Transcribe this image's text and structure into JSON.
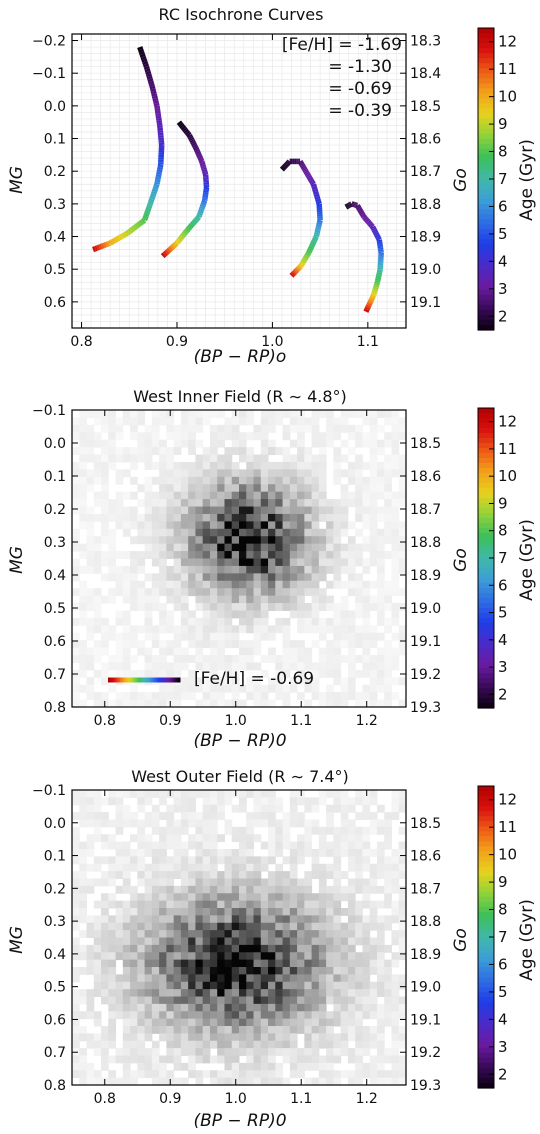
{
  "colormap": [
    "#0a0010",
    "#3a0a5a",
    "#6a1ba0",
    "#4a2ac8",
    "#1f3ee6",
    "#2f6ee4",
    "#3c9ed6",
    "#40b8a8",
    "#3cbf5a",
    "#8fd23a",
    "#e6d21e",
    "#f2a21a",
    "#ee5a16",
    "#d8100e",
    "#b00000"
  ],
  "panels": [
    {
      "title": "RC Isochrone Curves",
      "xlabel": "(BP − RP)o",
      "ylabel": "MG",
      "right_ylabel": "Go",
      "colorbar_label": "Age (Gyr)",
      "xlim": [
        0.79,
        1.14
      ],
      "ylim": [
        -0.22,
        0.68
      ],
      "xticks": [
        "0.8",
        "0.9",
        "1.0",
        "1.1"
      ],
      "yticks": [
        "−0.2",
        "−0.1",
        "0.0",
        "0.1",
        "0.2",
        "0.3",
        "0.4",
        "0.5",
        "0.6"
      ],
      "right_ticks": [
        "18.3",
        "18.4",
        "18.5",
        "18.6",
        "18.7",
        "18.8",
        "18.9",
        "19.0",
        "19.1"
      ],
      "cb_ticks": [
        "2",
        "3",
        "4",
        "5",
        "6",
        "7",
        "8",
        "9",
        "10",
        "11",
        "12"
      ],
      "annotations": [
        "[Fe/H] = -1.69",
        "= -1.30",
        "= -0.69",
        "= -0.39"
      ]
    },
    {
      "title": "West Inner Field (R ∼ 4.8°)",
      "xlabel": "(BP − RP)0",
      "ylabel": "MG",
      "right_ylabel": "Go",
      "colorbar_label": "Age (Gyr)",
      "xlim": [
        0.75,
        1.26
      ],
      "ylim": [
        -0.1,
        0.8
      ],
      "xticks": [
        "0.8",
        "0.9",
        "1.0",
        "1.1",
        "1.2"
      ],
      "yticks": [
        "−0.1",
        "0.0",
        "0.1",
        "0.2",
        "0.3",
        "0.4",
        "0.5",
        "0.6",
        "0.7",
        "0.8"
      ],
      "right_ticks": [
        "18.5",
        "18.6",
        "18.7",
        "18.8",
        "18.9",
        "19.0",
        "19.1",
        "19.2",
        "19.3"
      ],
      "cb_ticks": [
        "2",
        "3",
        "4",
        "5",
        "6",
        "7",
        "8",
        "9",
        "10",
        "11",
        "12"
      ],
      "annotation": "[Fe/H] = -0.69"
    },
    {
      "title": "West Outer Field (R ∼ 7.4°)",
      "xlabel": "(BP − RP)0",
      "ylabel": "MG",
      "right_ylabel": "Go",
      "colorbar_label": "Age (Gyr)",
      "xlim": [
        0.75,
        1.26
      ],
      "ylim": [
        -0.1,
        0.8
      ],
      "xticks": [
        "0.8",
        "0.9",
        "1.0",
        "1.1",
        "1.2"
      ],
      "yticks": [
        "−0.1",
        "0.0",
        "0.1",
        "0.2",
        "0.3",
        "0.4",
        "0.5",
        "0.6",
        "0.7",
        "0.8"
      ],
      "right_ticks": [
        "18.5",
        "18.6",
        "18.7",
        "18.8",
        "18.9",
        "19.0",
        "19.1",
        "19.2",
        "19.3"
      ],
      "cb_ticks": [
        "2",
        "3",
        "4",
        "5",
        "6",
        "7",
        "8",
        "9",
        "10",
        "11",
        "12"
      ]
    }
  ],
  "chart_data": [
    {
      "type": "line",
      "title": "RC Isochrone Curves",
      "xlabel": "(BP − RP)o",
      "ylabel": "MG",
      "xlim": [
        0.79,
        1.14
      ],
      "ylim": [
        0.68,
        -0.22
      ],
      "color_scale": {
        "label": "Age (Gyr)",
        "range": [
          1.5,
          12.5
        ]
      },
      "series": [
        {
          "name": "[Fe/H] = -1.69",
          "points": [
            [
              0.861,
              -0.18,
              1.5
            ],
            [
              0.868,
              -0.12,
              2
            ],
            [
              0.874,
              -0.06,
              2.5
            ],
            [
              0.879,
              0.0,
              3
            ],
            [
              0.882,
              0.06,
              3.5
            ],
            [
              0.884,
              0.12,
              4
            ],
            [
              0.883,
              0.18,
              5
            ],
            [
              0.879,
              0.24,
              6
            ],
            [
              0.872,
              0.3,
              7
            ],
            [
              0.866,
              0.35,
              8
            ],
            [
              0.848,
              0.39,
              9
            ],
            [
              0.83,
              0.42,
              10
            ],
            [
              0.812,
              0.44,
              12
            ]
          ]
        },
        {
          "name": "= -1.30",
          "points": [
            [
              0.902,
              0.05,
              1.5
            ],
            [
              0.913,
              0.09,
              2
            ],
            [
              0.92,
              0.13,
              2.5
            ],
            [
              0.926,
              0.17,
              3
            ],
            [
              0.93,
              0.21,
              3.5
            ],
            [
              0.931,
              0.25,
              4.5
            ],
            [
              0.929,
              0.29,
              5.5
            ],
            [
              0.923,
              0.34,
              7
            ],
            [
              0.911,
              0.38,
              8
            ],
            [
              0.9,
              0.42,
              9.5
            ],
            [
              0.885,
              0.46,
              12
            ]
          ]
        },
        {
          "name": "= -0.69",
          "points": [
            [
              1.01,
              0.195,
              1.5
            ],
            [
              1.018,
              0.17,
              2
            ],
            [
              1.029,
              0.17,
              2.5
            ],
            [
              1.035,
              0.2,
              3
            ],
            [
              1.043,
              0.24,
              3.5
            ],
            [
              1.049,
              0.3,
              4.5
            ],
            [
              1.05,
              0.35,
              5.5
            ],
            [
              1.046,
              0.4,
              7
            ],
            [
              1.038,
              0.45,
              8
            ],
            [
              1.03,
              0.49,
              9.5
            ],
            [
              1.02,
              0.52,
              12
            ]
          ]
        },
        {
          "name": "= -0.39",
          "points": [
            [
              1.077,
              0.31,
              1.5
            ],
            [
              1.083,
              0.3,
              2
            ],
            [
              1.089,
              0.305,
              2.5
            ],
            [
              1.096,
              0.34,
              3
            ],
            [
              1.105,
              0.37,
              3.5
            ],
            [
              1.112,
              0.41,
              4.5
            ],
            [
              1.114,
              0.45,
              5.5
            ],
            [
              1.113,
              0.5,
              7
            ],
            [
              1.11,
              0.54,
              8
            ],
            [
              1.106,
              0.58,
              9.5
            ],
            [
              1.098,
              0.63,
              12
            ]
          ]
        }
      ]
    },
    {
      "type": "heatmap",
      "title": "West Inner Field (R ∼ 4.8°)",
      "xlabel": "(BP − RP)0",
      "ylabel": "MG",
      "xlim": [
        0.75,
        1.26
      ],
      "ylim": [
        0.8,
        -0.1
      ],
      "density": {
        "center": [
          1.02,
          0.29
        ],
        "sigma": [
          0.06,
          0.11
        ],
        "background": 0.04
      },
      "overlay_isochrone": "[Fe/H] = -0.69"
    },
    {
      "type": "heatmap",
      "title": "West Outer Field (R ∼ 7.4°)",
      "xlabel": "(BP − RP)0",
      "ylabel": "MG",
      "xlim": [
        0.75,
        1.26
      ],
      "ylim": [
        0.8,
        -0.1
      ],
      "density": {
        "center": [
          1.0,
          0.43
        ],
        "sigma": [
          0.09,
          0.13
        ],
        "background": 0.05
      },
      "overlay_isochrone": "[Fe/H] = -0.69"
    }
  ]
}
